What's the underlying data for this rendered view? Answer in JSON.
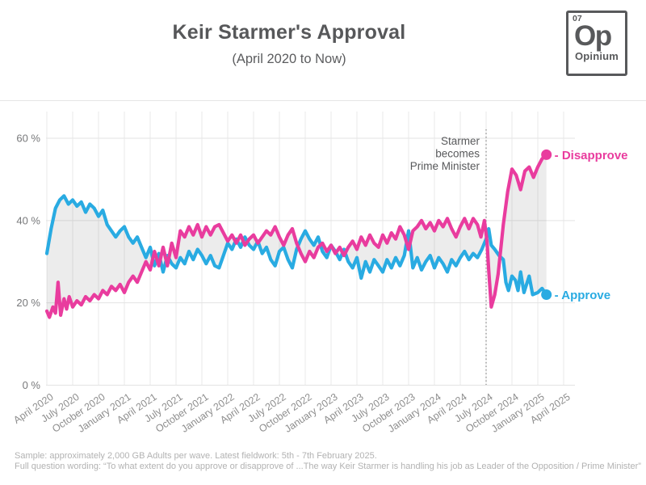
{
  "header": {
    "title": "Keir Starmer's Approval",
    "subtitle": "(April 2020 to Now)"
  },
  "logo": {
    "number": "07",
    "symbol": "Op",
    "name": "Opinium"
  },
  "annotation": {
    "lines": [
      "Starmer",
      "becomes",
      "Prime Minister"
    ]
  },
  "footer": {
    "line1": "Sample: approximately 2,000 GB Adults per wave. Latest fieldwork: 5th - 7th February 2025.",
    "line2": "Full question wording: “To what extent do you approve or disapprove of ...The way Keir Starmer is handling his job as Leader of the Opposition / Prime Minister”"
  },
  "chart_data": {
    "type": "line",
    "title": "Keir Starmer's Approval",
    "subtitle": "(April 2020 to Now)",
    "x_unit": "months since April 2020",
    "xlim": [
      0,
      61
    ],
    "ylim": [
      0,
      62
    ],
    "grid": true,
    "x_tick_months": [
      0,
      3,
      6,
      9,
      12,
      15,
      18,
      21,
      24,
      27,
      30,
      33,
      36,
      39,
      42,
      45,
      48,
      51,
      54,
      57,
      60
    ],
    "x_tick_labels": [
      "April 2020",
      "July 2020",
      "October 2020",
      "January 2021",
      "April 2021",
      "July 2021",
      "October 2021",
      "January 2022",
      "April 2022",
      "July 2022",
      "October 2022",
      "January 2023",
      "April 2023",
      "July 2023",
      "October 2023",
      "January 2024",
      "April 2024",
      "July 2024",
      "October 2024",
      "January 2025",
      "April 2025"
    ],
    "y_ticks": [
      60,
      40,
      20,
      0
    ],
    "y_tick_labels": [
      "60 %",
      "40 %",
      "20 %",
      "0 %"
    ],
    "event_line": {
      "month": 51,
      "label": "Starmer becomes Prime Minister"
    },
    "end_label_prefix": "- ",
    "band_color": "rgba(130,130,130,0.15)",
    "series": [
      {
        "name": "Approve",
        "color": "#29abe2",
        "points": [
          [
            0,
            32
          ],
          [
            0.5,
            38
          ],
          [
            1,
            43
          ],
          [
            1.5,
            45
          ],
          [
            2,
            46
          ],
          [
            2.5,
            44
          ],
          [
            3,
            45
          ],
          [
            3.5,
            43.5
          ],
          [
            4,
            44.5
          ],
          [
            4.5,
            42
          ],
          [
            5,
            44
          ],
          [
            5.5,
            43
          ],
          [
            6,
            41
          ],
          [
            6.5,
            42.5
          ],
          [
            7,
            39
          ],
          [
            7.5,
            37.5
          ],
          [
            8,
            36
          ],
          [
            8.5,
            37.5
          ],
          [
            9,
            38.5
          ],
          [
            9.5,
            36
          ],
          [
            10,
            34.5
          ],
          [
            10.5,
            36
          ],
          [
            11,
            33.5
          ],
          [
            11.5,
            31
          ],
          [
            12,
            33.5
          ],
          [
            12.5,
            29
          ],
          [
            13,
            32
          ],
          [
            13.5,
            27.5
          ],
          [
            14,
            31.5
          ],
          [
            14.5,
            29.5
          ],
          [
            15,
            28.5
          ],
          [
            15.5,
            31
          ],
          [
            16,
            29.5
          ],
          [
            16.5,
            32.5
          ],
          [
            17,
            30.5
          ],
          [
            17.5,
            33
          ],
          [
            18,
            31.5
          ],
          [
            18.5,
            29.5
          ],
          [
            19,
            31.5
          ],
          [
            19.5,
            29
          ],
          [
            20,
            28.5
          ],
          [
            20.5,
            31.5
          ],
          [
            21,
            34.5
          ],
          [
            21.5,
            33
          ],
          [
            22,
            35.5
          ],
          [
            22.5,
            33.5
          ],
          [
            23,
            36
          ],
          [
            23.5,
            34
          ],
          [
            24,
            33
          ],
          [
            24.5,
            35
          ],
          [
            25,
            32
          ],
          [
            25.5,
            33.5
          ],
          [
            26,
            30.5
          ],
          [
            26.5,
            29
          ],
          [
            27,
            32.5
          ],
          [
            27.5,
            33.5
          ],
          [
            28,
            30.5
          ],
          [
            28.5,
            28.5
          ],
          [
            29,
            33
          ],
          [
            29.5,
            35.5
          ],
          [
            30,
            37.5
          ],
          [
            30.5,
            35.5
          ],
          [
            31,
            34
          ],
          [
            31.5,
            36
          ],
          [
            32,
            32.5
          ],
          [
            32.5,
            31
          ],
          [
            33,
            34
          ],
          [
            33.5,
            32.5
          ],
          [
            34,
            30.5
          ],
          [
            34.5,
            33
          ],
          [
            35,
            30
          ],
          [
            35.5,
            28.5
          ],
          [
            36,
            31
          ],
          [
            36.5,
            26
          ],
          [
            37,
            30
          ],
          [
            37.5,
            27.5
          ],
          [
            38,
            30.5
          ],
          [
            38.5,
            29
          ],
          [
            39,
            27.5
          ],
          [
            39.5,
            30.5
          ],
          [
            40,
            28.5
          ],
          [
            40.5,
            31
          ],
          [
            41,
            29
          ],
          [
            41.5,
            31.5
          ],
          [
            42,
            37.5
          ],
          [
            42.5,
            28.5
          ],
          [
            43,
            31
          ],
          [
            43.5,
            28
          ],
          [
            44,
            30
          ],
          [
            44.5,
            31.5
          ],
          [
            45,
            28.5
          ],
          [
            45.5,
            31
          ],
          [
            46,
            29.5
          ],
          [
            46.5,
            27.5
          ],
          [
            47,
            30.5
          ],
          [
            47.5,
            29
          ],
          [
            48,
            31
          ],
          [
            48.5,
            32.5
          ],
          [
            49,
            30.5
          ],
          [
            49.5,
            32
          ],
          [
            50,
            31
          ],
          [
            50.5,
            33
          ],
          [
            51,
            35.5
          ],
          [
            51.3,
            38
          ],
          [
            51.6,
            34
          ],
          [
            52,
            33
          ],
          [
            52.5,
            31.5
          ],
          [
            53,
            30.5
          ],
          [
            53.3,
            25
          ],
          [
            53.6,
            23
          ],
          [
            54,
            26.5
          ],
          [
            54.4,
            25.5
          ],
          [
            54.7,
            23
          ],
          [
            55,
            27.5
          ],
          [
            55.4,
            22.5
          ],
          [
            56,
            26.5
          ],
          [
            56.4,
            22
          ],
          [
            57,
            22.5
          ],
          [
            57.5,
            23.5
          ],
          [
            58,
            22
          ]
        ]
      },
      {
        "name": "Disapprove",
        "color": "#e93c9e",
        "points": [
          [
            0,
            18
          ],
          [
            0.3,
            16.5
          ],
          [
            0.7,
            19
          ],
          [
            1,
            17.5
          ],
          [
            1.3,
            25
          ],
          [
            1.6,
            17
          ],
          [
            2,
            21
          ],
          [
            2.3,
            18.5
          ],
          [
            2.6,
            21.5
          ],
          [
            3,
            19
          ],
          [
            3.5,
            20.5
          ],
          [
            4,
            19.5
          ],
          [
            4.5,
            21.5
          ],
          [
            5,
            20.5
          ],
          [
            5.5,
            22
          ],
          [
            6,
            21
          ],
          [
            6.5,
            23
          ],
          [
            7,
            22
          ],
          [
            7.5,
            24
          ],
          [
            8,
            23
          ],
          [
            8.5,
            24.5
          ],
          [
            9,
            22.5
          ],
          [
            9.5,
            25
          ],
          [
            10,
            26.5
          ],
          [
            10.5,
            25
          ],
          [
            11,
            27.5
          ],
          [
            11.5,
            30
          ],
          [
            12,
            28
          ],
          [
            12.5,
            32.5
          ],
          [
            13,
            29
          ],
          [
            13.5,
            33.5
          ],
          [
            14,
            29
          ],
          [
            14.5,
            34.5
          ],
          [
            15,
            31
          ],
          [
            15.5,
            37.5
          ],
          [
            16,
            36
          ],
          [
            16.5,
            38.5
          ],
          [
            17,
            36.5
          ],
          [
            17.5,
            39
          ],
          [
            18,
            36
          ],
          [
            18.5,
            38.5
          ],
          [
            19,
            36.5
          ],
          [
            19.5,
            38.5
          ],
          [
            20,
            39
          ],
          [
            20.5,
            37
          ],
          [
            21,
            35
          ],
          [
            21.5,
            36.5
          ],
          [
            22,
            34.5
          ],
          [
            22.5,
            36.5
          ],
          [
            23,
            34
          ],
          [
            23.5,
            35.5
          ],
          [
            24,
            36.5
          ],
          [
            24.5,
            34.5
          ],
          [
            25,
            36
          ],
          [
            25.5,
            37.5
          ],
          [
            26,
            36.5
          ],
          [
            26.5,
            38.5
          ],
          [
            27,
            36
          ],
          [
            27.5,
            34
          ],
          [
            28,
            36.5
          ],
          [
            28.5,
            38
          ],
          [
            29,
            34.5
          ],
          [
            29.5,
            32
          ],
          [
            30,
            30
          ],
          [
            30.5,
            32.5
          ],
          [
            31,
            31
          ],
          [
            31.5,
            33.5
          ],
          [
            32,
            34.5
          ],
          [
            32.5,
            32.5
          ],
          [
            33,
            34
          ],
          [
            33.5,
            32
          ],
          [
            34,
            33.5
          ],
          [
            34.5,
            31.5
          ],
          [
            35,
            33.5
          ],
          [
            35.5,
            35
          ],
          [
            36,
            33
          ],
          [
            36.5,
            36
          ],
          [
            37,
            34
          ],
          [
            37.5,
            36.5
          ],
          [
            38,
            34.5
          ],
          [
            38.5,
            33.5
          ],
          [
            39,
            36.5
          ],
          [
            39.5,
            34.5
          ],
          [
            40,
            37
          ],
          [
            40.5,
            35.5
          ],
          [
            41,
            38.5
          ],
          [
            41.5,
            36.5
          ],
          [
            42,
            33
          ],
          [
            42.5,
            37.5
          ],
          [
            43,
            38.5
          ],
          [
            43.5,
            40
          ],
          [
            44,
            38
          ],
          [
            44.5,
            39.5
          ],
          [
            45,
            37.5
          ],
          [
            45.5,
            40
          ],
          [
            46,
            38.5
          ],
          [
            46.5,
            40.5
          ],
          [
            47,
            38
          ],
          [
            47.5,
            36
          ],
          [
            48,
            38.5
          ],
          [
            48.5,
            40.5
          ],
          [
            49,
            38
          ],
          [
            49.5,
            40.5
          ],
          [
            50,
            39
          ],
          [
            50.4,
            36
          ],
          [
            50.8,
            40
          ],
          [
            51.1,
            35
          ],
          [
            51.3,
            28
          ],
          [
            51.6,
            19
          ],
          [
            52,
            22
          ],
          [
            52.4,
            27
          ],
          [
            53,
            39
          ],
          [
            53.5,
            47
          ],
          [
            54,
            52.5
          ],
          [
            54.5,
            51
          ],
          [
            55,
            47.5
          ],
          [
            55.5,
            52
          ],
          [
            56,
            53
          ],
          [
            56.5,
            50.5
          ],
          [
            57,
            53
          ],
          [
            57.5,
            55
          ],
          [
            58,
            56
          ]
        ]
      }
    ]
  }
}
